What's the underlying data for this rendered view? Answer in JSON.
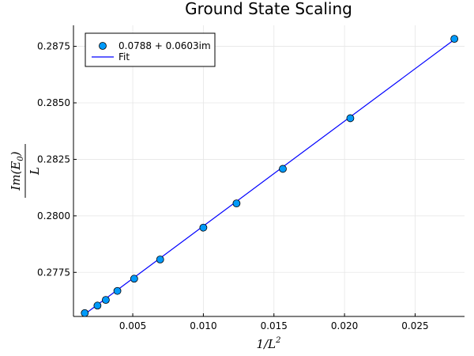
{
  "chart_data": {
    "type": "scatter",
    "title": "Ground State Scaling",
    "xlabel": "1/L²",
    "ylabel": "Im(E₀)/L",
    "ylabel_numerator": "Im(E",
    "ylabel_sub": "0",
    "ylabel_close": ")",
    "ylabel_denominator": "L",
    "xlabel_base": "1/L",
    "xlabel_sup": "2",
    "xlim": [
      0.0008,
      0.0285
    ],
    "ylim": [
      0.27555,
      0.28843
    ],
    "xticks": [
      0.005,
      0.01,
      0.015,
      0.02,
      0.025
    ],
    "xtick_labels": [
      "0.005",
      "0.010",
      "0.015",
      "0.020",
      "0.025"
    ],
    "yticks": [
      0.2775,
      0.28,
      0.2825,
      0.285,
      0.2875
    ],
    "ytick_labels": [
      "0.2775",
      "0.2800",
      "0.2825",
      "0.2850",
      "0.2875"
    ],
    "grid": true,
    "legend_position": "top-left",
    "series": [
      {
        "name": "0.0788 + 0.0603im",
        "kind": "scatter",
        "color": "#009AFA",
        "x": [
          0.0016,
          0.0025,
          0.00309,
          0.00391,
          0.0051,
          0.00694,
          0.01,
          0.01235,
          0.01563,
          0.02041,
          0.02778
        ],
        "y": [
          0.2757,
          0.27603,
          0.27628,
          0.27668,
          0.27722,
          0.27807,
          0.27948,
          0.28055,
          0.28208,
          0.28432,
          0.28783
        ]
      },
      {
        "name": "Fit",
        "kind": "line",
        "color": "#0000FF",
        "x": [
          0.0016,
          0.02778
        ],
        "y": [
          0.27565,
          0.2878
        ]
      }
    ]
  }
}
